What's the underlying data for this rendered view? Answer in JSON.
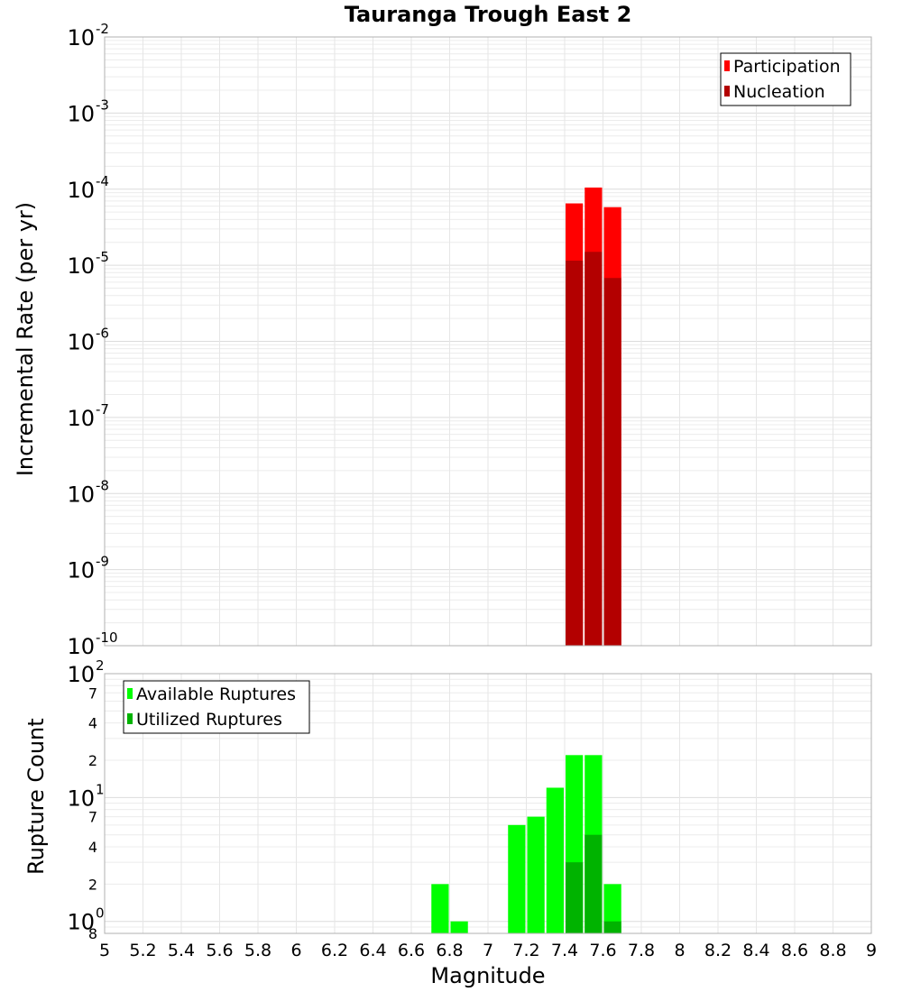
{
  "chart_data": [
    {
      "type": "bar",
      "title": "Tauranga Trough East 2",
      "xlabel": "Magnitude",
      "ylabel": "Incremental Rate (per yr)",
      "yscale": "log",
      "ylim": [
        1e-10,
        0.01
      ],
      "xlim": [
        5,
        9
      ],
      "bar_width": 0.1,
      "y_ticks": [
        {
          "base": "10",
          "exp": "-2",
          "value": 0.01
        },
        {
          "base": "10",
          "exp": "-3",
          "value": 0.001
        },
        {
          "base": "10",
          "exp": "-4",
          "value": 0.0001
        },
        {
          "base": "10",
          "exp": "-5",
          "value": 1e-05
        },
        {
          "base": "10",
          "exp": "-6",
          "value": 1e-06
        },
        {
          "base": "10",
          "exp": "-7",
          "value": 1e-07
        },
        {
          "base": "10",
          "exp": "-8",
          "value": 1e-08
        },
        {
          "base": "10",
          "exp": "-9",
          "value": 1e-09
        },
        {
          "base": "10",
          "exp": "-10",
          "value": 1e-10
        }
      ],
      "legend_position": "top-right",
      "series": [
        {
          "name": "Participation",
          "color": "#ff0000",
          "x": [
            7.45,
            7.55,
            7.65
          ],
          "values": [
            6.5e-05,
            0.000105,
            5.8e-05
          ]
        },
        {
          "name": "Nucleation",
          "color": "#b30000",
          "x": [
            7.45,
            7.55,
            7.65
          ],
          "values": [
            1.15e-05,
            1.5e-05,
            6.8e-06
          ]
        }
      ]
    },
    {
      "type": "bar",
      "xlabel": "Magnitude",
      "ylabel": "Rupture Count",
      "yscale": "log",
      "ylim": [
        0.8,
        100
      ],
      "xlim": [
        5,
        9
      ],
      "bar_width": 0.1,
      "y_ticks": [
        {
          "base": "10",
          "exp": "2",
          "value": 100
        },
        {
          "label": "7",
          "value": 70
        },
        {
          "label": "4",
          "value": 40
        },
        {
          "label": "2",
          "value": 20
        },
        {
          "base": "10",
          "exp": "1",
          "value": 10
        },
        {
          "label": "7",
          "value": 7
        },
        {
          "label": "4",
          "value": 4
        },
        {
          "label": "2",
          "value": 2
        },
        {
          "base": "10",
          "exp": "0",
          "value": 1
        },
        {
          "label": "8",
          "value": 0.8
        }
      ],
      "x_ticks": [
        "5",
        "5.2",
        "5.4",
        "5.6",
        "5.8",
        "6",
        "6.2",
        "6.4",
        "6.6",
        "6.8",
        "7",
        "7.2",
        "7.4",
        "7.6",
        "7.8",
        "8",
        "8.2",
        "8.4",
        "8.6",
        "8.8",
        "9"
      ],
      "legend_position": "top-left",
      "series": [
        {
          "name": "Available Ruptures",
          "color": "#00ff00",
          "x": [
            6.75,
            6.85,
            7.15,
            7.25,
            7.35,
            7.45,
            7.55,
            7.65
          ],
          "values": [
            2,
            1,
            6,
            7,
            12,
            22,
            22,
            2
          ]
        },
        {
          "name": "Utilized Ruptures",
          "color": "#00b300",
          "x": [
            7.45,
            7.55,
            7.65
          ],
          "values": [
            3,
            5,
            1
          ]
        }
      ]
    }
  ]
}
